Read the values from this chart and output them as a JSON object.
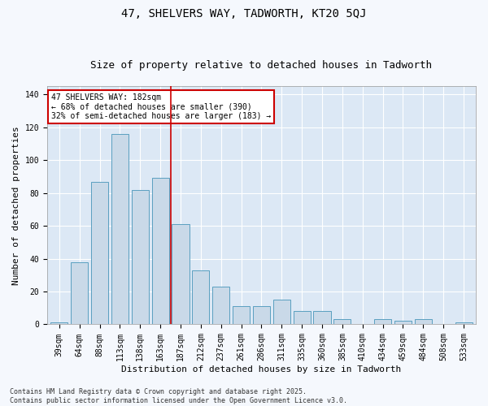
{
  "title": "47, SHELVERS WAY, TADWORTH, KT20 5QJ",
  "subtitle": "Size of property relative to detached houses in Tadworth",
  "xlabel": "Distribution of detached houses by size in Tadworth",
  "ylabel": "Number of detached properties",
  "categories": [
    "39sqm",
    "64sqm",
    "88sqm",
    "113sqm",
    "138sqm",
    "163sqm",
    "187sqm",
    "212sqm",
    "237sqm",
    "261sqm",
    "286sqm",
    "311sqm",
    "335sqm",
    "360sqm",
    "385sqm",
    "410sqm",
    "434sqm",
    "459sqm",
    "484sqm",
    "508sqm",
    "533sqm"
  ],
  "values": [
    1,
    38,
    87,
    116,
    82,
    89,
    61,
    33,
    23,
    11,
    11,
    15,
    8,
    8,
    3,
    0,
    3,
    2,
    3,
    0,
    1
  ],
  "bar_color": "#c9d9e8",
  "bar_edge_color": "#5a9fc0",
  "vline_x": 5.5,
  "vline_color": "#cc0000",
  "annotation_text": "47 SHELVERS WAY: 182sqm\n← 68% of detached houses are smaller (390)\n32% of semi-detached houses are larger (183) →",
  "annotation_box_color": "#cc0000",
  "ylim": [
    0,
    145
  ],
  "yticks": [
    0,
    20,
    40,
    60,
    80,
    100,
    120,
    140
  ],
  "background_color": "#dce8f5",
  "fig_background_color": "#f5f8fd",
  "grid_color": "#ffffff",
  "footer_text": "Contains HM Land Registry data © Crown copyright and database right 2025.\nContains public sector information licensed under the Open Government Licence v3.0.",
  "title_fontsize": 10,
  "subtitle_fontsize": 9,
  "annotation_fontsize": 7,
  "tick_fontsize": 7,
  "ylabel_fontsize": 8,
  "xlabel_fontsize": 8
}
